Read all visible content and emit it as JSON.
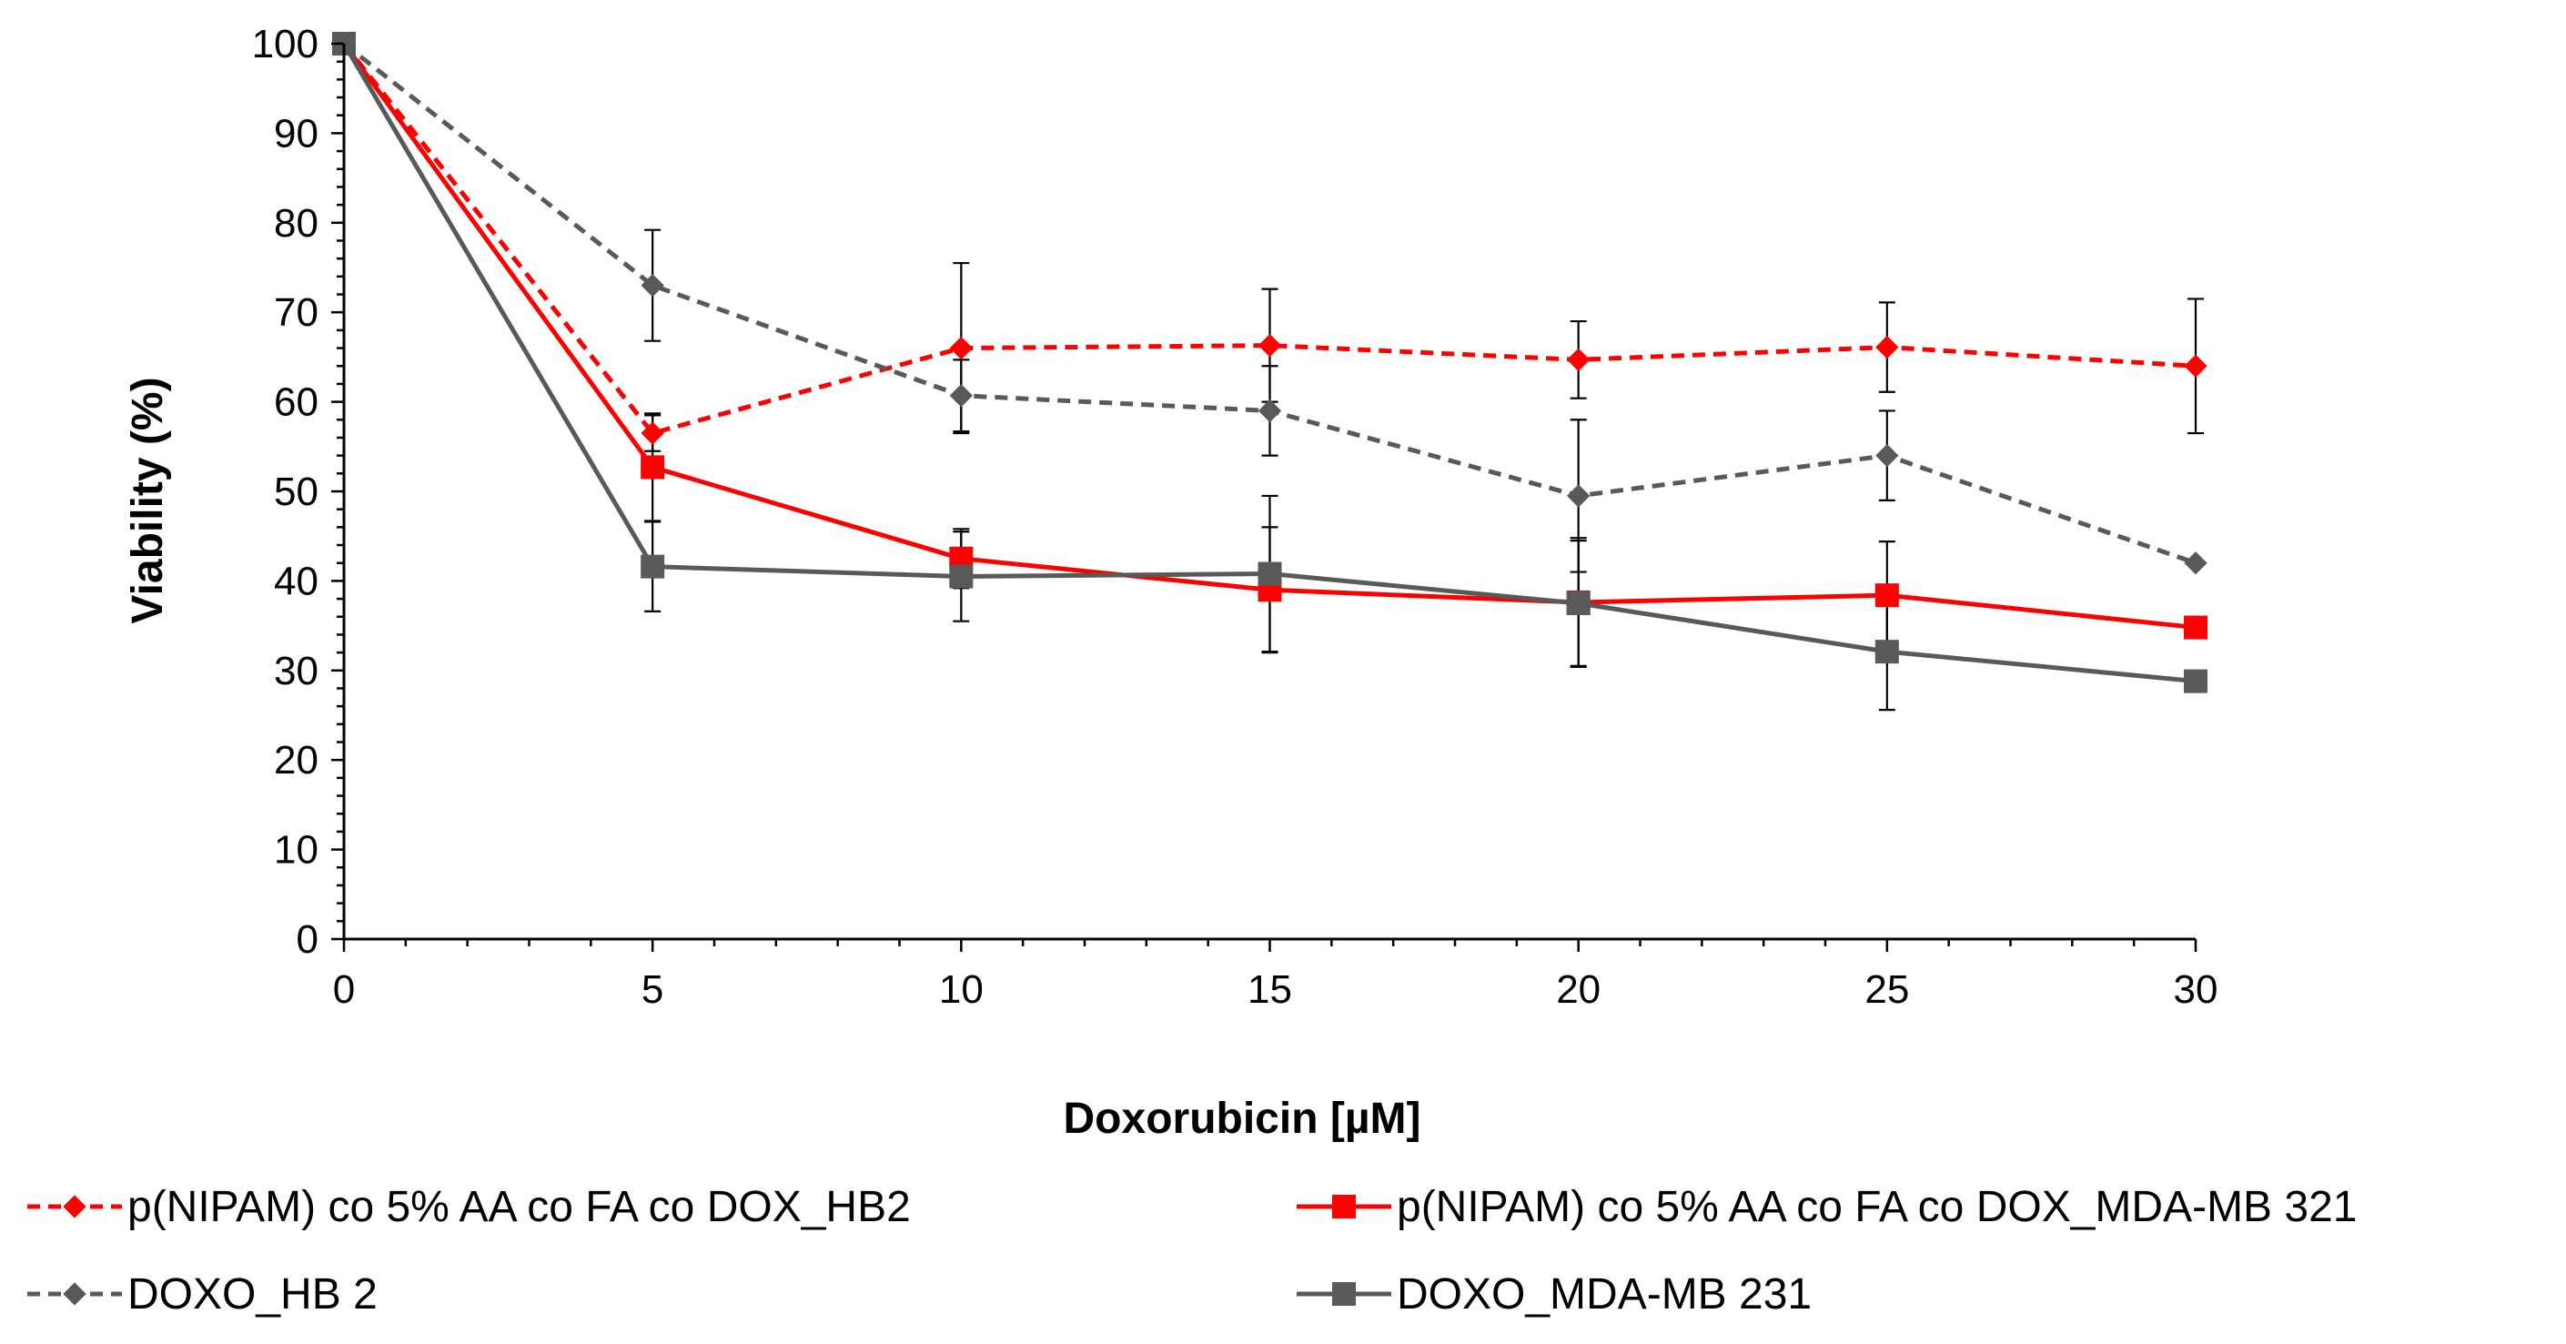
{
  "chart_data": {
    "type": "line",
    "title": "",
    "xlabel": "Doxorubicin  [µM]",
    "ylabel": "Viability (%)",
    "x": [
      0,
      5,
      10,
      15,
      20,
      25,
      30
    ],
    "xlim": [
      0,
      30
    ],
    "ylim": [
      0,
      100
    ],
    "x_ticks": [
      "0",
      "5",
      "10",
      "15",
      "20",
      "25",
      "30"
    ],
    "y_ticks": [
      "0",
      "10",
      "20",
      "30",
      "40",
      "50",
      "60",
      "70",
      "80",
      "90",
      "100"
    ],
    "grid": false,
    "legend_position": "bottom",
    "series": [
      {
        "name": "p(NIPAM) co 5% AA co FA co DOX_HB2",
        "color": "#ff0000",
        "line_style": "dashed",
        "marker": "diamond",
        "values": [
          100,
          56.5,
          66,
          66.3,
          64.7,
          66.1,
          64
        ],
        "error": [
          0,
          2,
          9.5,
          6.3,
          4.3,
          5,
          7.5
        ]
      },
      {
        "name": "p(NIPAM) co 5% AA co FA co DOX_MDA-MB 321",
        "color": "#ff0000",
        "line_style": "solid",
        "marker": "square",
        "values": [
          100,
          52.7,
          42.5,
          39,
          37.6,
          38.4,
          34.8
        ],
        "error": [
          0,
          6,
          3.3,
          7,
          7.2,
          6,
          0
        ]
      },
      {
        "name": "DOXO_HB 2",
        "color": "#595959",
        "line_style": "dashed",
        "marker": "diamond",
        "values": [
          100,
          73,
          60.7,
          59,
          49.5,
          54,
          42
        ],
        "error": [
          0,
          6.2,
          4,
          5,
          8.5,
          5,
          0
        ]
      },
      {
        "name": "DOXO_MDA-MB 231",
        "color": "#595959",
        "line_style": "solid",
        "marker": "square",
        "values": [
          100,
          41.6,
          40.5,
          40.8,
          37.5,
          32.1,
          28.8
        ],
        "error": [
          0,
          5,
          5,
          8.7,
          7,
          6.5,
          0
        ]
      }
    ]
  }
}
